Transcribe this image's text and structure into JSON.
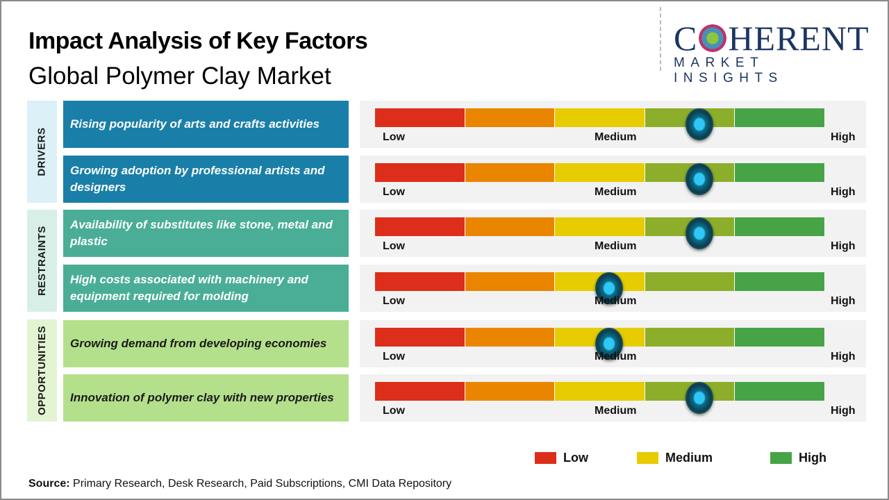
{
  "header": {
    "title": "Impact Analysis of Key Factors",
    "subtitle": "Global Polymer Clay Market"
  },
  "logo": {
    "main_left": "C",
    "main_right": "HERENT",
    "sub": "MARKET INSIGHTS"
  },
  "scale_labels": {
    "low": "Low",
    "medium": "Medium",
    "high": "High"
  },
  "segment_colors": [
    "#dc2e1a",
    "#ea8500",
    "#e6cc00",
    "#8cae2a",
    "#46a446"
  ],
  "knob_color": "#1fb8ea",
  "categories": [
    {
      "label": "DRIVERS",
      "color": "#1a7fa8",
      "bg": "#dcf0f8",
      "text": "#ffffff"
    },
    {
      "label": "RESTRAINTS",
      "color": "#4aae96",
      "bg": "#d8efe8",
      "text": "#ffffff"
    },
    {
      "label": "OPPORTUNITIES",
      "color": "#b4e08c",
      "bg": "#e3f4d3",
      "text": "#1a1a1a"
    }
  ],
  "factors": [
    {
      "category": 0,
      "text": "Rising popularity of arts and crafts activities",
      "impact_level": 0.72
    },
    {
      "category": 0,
      "text": "Growing adoption by professional artists and designers",
      "impact_level": 0.72
    },
    {
      "category": 1,
      "text": "Availability of substitutes like stone, metal and plastic",
      "impact_level": 0.72
    },
    {
      "category": 1,
      "text": "High costs associated with machinery and equipment required for molding",
      "impact_level": 0.52
    },
    {
      "category": 2,
      "text": "Growing demand from developing economies",
      "impact_level": 0.52
    },
    {
      "category": 2,
      "text": "Innovation of polymer clay with new properties",
      "impact_level": 0.72
    }
  ],
  "legend": [
    {
      "label": "Low",
      "color": "#dc2e1a"
    },
    {
      "label": "Medium",
      "color": "#e6cc00"
    },
    {
      "label": "High",
      "color": "#46a446"
    }
  ],
  "source": {
    "label": "Source:",
    "text": " Primary Research, Desk Research, Paid Subscriptions, CMI Data Repository"
  }
}
